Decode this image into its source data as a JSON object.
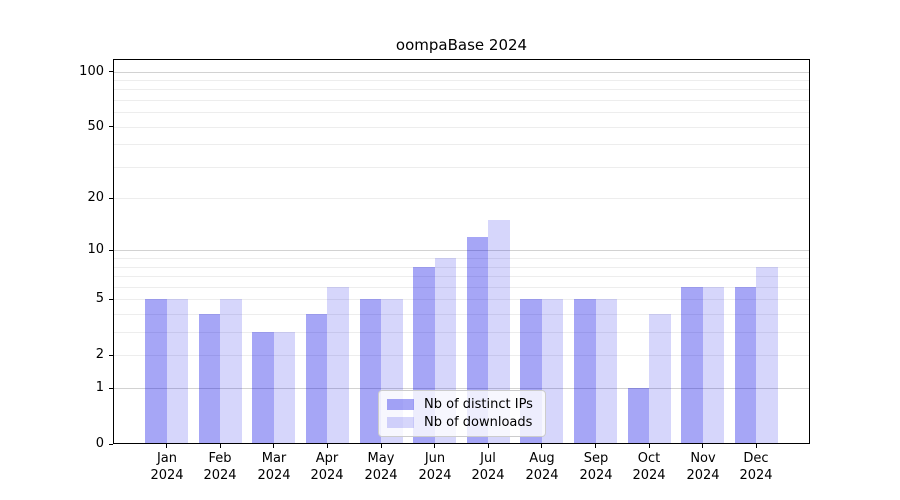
{
  "chart_data": {
    "type": "bar",
    "title": "oompaBase 2024",
    "x_tick_months": [
      "Jan",
      "Feb",
      "Mar",
      "Apr",
      "May",
      "Jun",
      "Jul",
      "Aug",
      "Sep",
      "Oct",
      "Nov",
      "Dec"
    ],
    "x_tick_year": "2024",
    "series": [
      {
        "id": "distinct-ips",
        "name": "Nb of distinct IPs",
        "fill": "rgba(0,0,230,0.35)",
        "color_hex": "#a6a6f6",
        "values": [
          5,
          4,
          3,
          4,
          5,
          8,
          12,
          5,
          5,
          1,
          6,
          6
        ]
      },
      {
        "id": "downloads",
        "name": "Nb of downloads",
        "fill": "rgba(0,0,230,0.16)",
        "color_hex": "#d7d7fb",
        "values": [
          5,
          5,
          3,
          6,
          5,
          9,
          15,
          5,
          5,
          4,
          6,
          8
        ]
      }
    ],
    "y_axis": {
      "scale": "log1p",
      "tick_labels": [
        100,
        50,
        20,
        10,
        5,
        2,
        1,
        0
      ],
      "major_gridlines": [
        1,
        10,
        100
      ],
      "minor_gridlines": [
        2,
        3,
        4,
        5,
        6,
        7,
        8,
        9,
        20,
        30,
        40,
        50,
        60,
        70,
        80,
        90
      ],
      "ylim": [
        0,
        117
      ]
    },
    "grid": "horizontal",
    "legend_position": "lower center"
  }
}
